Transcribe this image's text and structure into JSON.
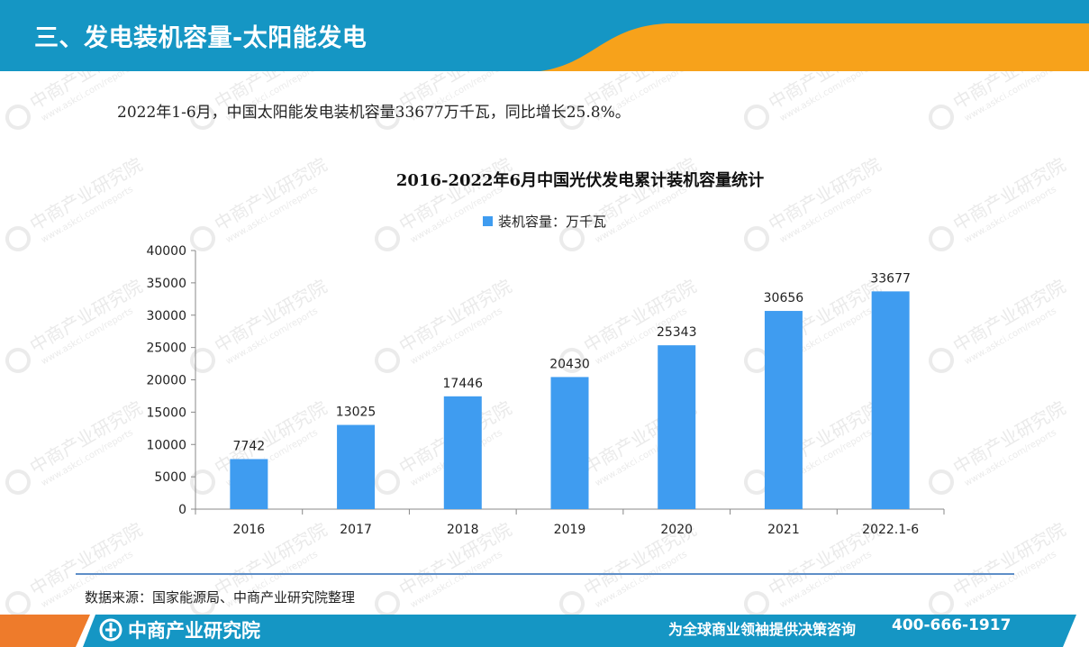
{
  "header": {
    "title": "三、发电装机容量-太阳能发电"
  },
  "summary": "2022年1-6月，中国太阳能发电装机容量33677万千瓦，同比增长25.8%。",
  "chart_data": {
    "type": "bar",
    "title": "2016-2022年6月中国光伏发电累计装机容量统计",
    "legend_position": "top",
    "series": [
      {
        "name": "装机容量：万千瓦",
        "values": [
          7742,
          13025,
          17446,
          20430,
          25343,
          30656,
          33677
        ]
      }
    ],
    "categories": [
      "2016",
      "2017",
      "2018",
      "2019",
      "2020",
      "2021",
      "2022.1-6"
    ],
    "ylim": [
      0,
      40000
    ],
    "yticks": [
      "0",
      "5000",
      "10000",
      "15000",
      "20000",
      "25000",
      "30000",
      "35000",
      "40000"
    ],
    "grid": false,
    "colors": {
      "bar": "#3f9cf0"
    }
  },
  "source": "数据来源：国家能源局、中商产业研究院整理",
  "watermark": {
    "name": "中商产业研究院",
    "url": "www.askci.com/reports"
  },
  "footer": {
    "brand": "中商产业研究院",
    "slogan": "为全球商业领袖提供决策咨询",
    "phone": "400-666-1917"
  },
  "colors": {
    "header_blue": "#1596c4",
    "accent_orange": "#f7a21b",
    "footer_orange": "#ee7b2b"
  }
}
